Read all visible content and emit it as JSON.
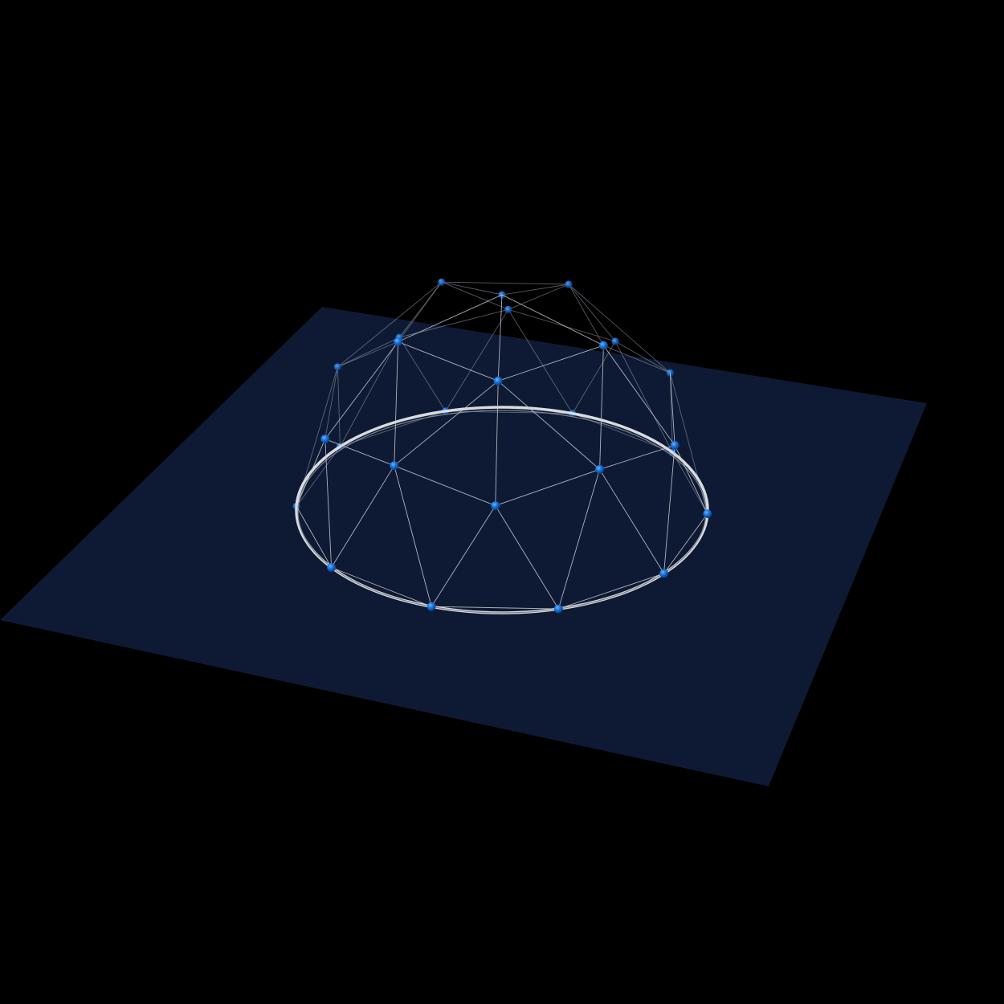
{
  "scene": {
    "background_color": "#000000",
    "plane_color": "#0e1a33",
    "strut_color": "#c9ced6",
    "node_color": "#1a78e0",
    "ring_color": "#d8dbe0"
  }
}
